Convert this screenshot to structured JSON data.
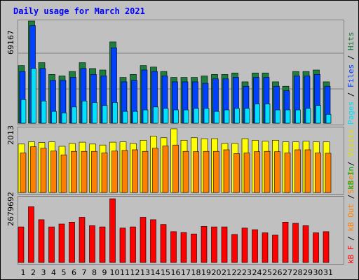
{
  "colors": {
    "frame_bg": "#c0c0c0",
    "title": "#0000ff",
    "pages": "#00e0ff",
    "files": "#0040ff",
    "hits": "#1e7e3e",
    "visits": "#ffff00",
    "sites": "#ff8000",
    "kb_in": "#00b000",
    "kb_out": "#ff0000",
    "weekend_label": "#1e7e3e"
  },
  "chart_data": [
    {
      "type": "bar",
      "title": "Daily usage for March 2021",
      "panel": "hits-files-pages",
      "y_max_label": "69167",
      "ylim": [
        0,
        69167
      ],
      "legend": {
        "pages": "Pages",
        "sep1": " / ",
        "files": "Files",
        "sep2": " / ",
        "hits": "Hits"
      },
      "categories": [
        "1",
        "2",
        "3",
        "4",
        "5",
        "6",
        "7",
        "8",
        "9",
        "10",
        "11",
        "12",
        "13",
        "14",
        "15",
        "16",
        "17",
        "18",
        "19",
        "20",
        "21",
        "22",
        "23",
        "24",
        "25",
        "26",
        "27",
        "28",
        "29",
        "30",
        "31"
      ],
      "weekend": [
        "6",
        "7",
        "13",
        "14",
        "20",
        "21",
        "27",
        "28"
      ],
      "series": [
        {
          "name": "Hits",
          "values": [
            39000,
            69167,
            41000,
            33000,
            32000,
            35000,
            41000,
            37000,
            36000,
            55000,
            31000,
            33000,
            39000,
            38000,
            35000,
            31000,
            31000,
            31000,
            32000,
            33000,
            33000,
            34000,
            28000,
            34000,
            34000,
            28000,
            25000,
            35000,
            35000,
            36000,
            28000
          ]
        },
        {
          "name": "Files",
          "values": [
            35000,
            66000,
            37000,
            29000,
            29000,
            31000,
            37000,
            33000,
            32000,
            51000,
            28000,
            29000,
            36000,
            35000,
            32000,
            28000,
            28000,
            28000,
            27000,
            30000,
            30000,
            31000,
            25000,
            31000,
            31000,
            25000,
            22000,
            32000,
            32000,
            33000,
            25000
          ]
        },
        {
          "name": "Pages",
          "values": [
            16000,
            37000,
            15000,
            8000,
            7000,
            11000,
            15000,
            14000,
            12000,
            14000,
            8000,
            8000,
            9000,
            11000,
            10000,
            9000,
            9000,
            10000,
            10000,
            8000,
            9000,
            10000,
            10000,
            13000,
            13000,
            9000,
            9000,
            9000,
            10000,
            12000,
            6000
          ]
        }
      ]
    },
    {
      "type": "bar",
      "panel": "visits-sites",
      "y_max_label": "2013",
      "ylim": [
        0,
        2013
      ],
      "legend": {
        "sites": "Sites",
        "sep": " / ",
        "visits": "Visits"
      },
      "categories": [
        "1",
        "2",
        "3",
        "4",
        "5",
        "6",
        "7",
        "8",
        "9",
        "10",
        "11",
        "12",
        "13",
        "14",
        "15",
        "16",
        "17",
        "18",
        "19",
        "20",
        "21",
        "22",
        "23",
        "24",
        "25",
        "26",
        "27",
        "28",
        "29",
        "30",
        "31"
      ],
      "series": [
        {
          "name": "Visits",
          "values": [
            1530,
            1600,
            1580,
            1600,
            1460,
            1550,
            1590,
            1530,
            1500,
            1590,
            1600,
            1550,
            1650,
            1780,
            1730,
            2013,
            1650,
            1730,
            1700,
            1700,
            1550,
            1550,
            1700,
            1650,
            1620,
            1650,
            1600,
            1600,
            1620,
            1600,
            1600
          ]
        },
        {
          "name": "Sites",
          "values": [
            1250,
            1450,
            1400,
            1310,
            1190,
            1300,
            1300,
            1300,
            1250,
            1310,
            1330,
            1350,
            1300,
            1400,
            1470,
            1500,
            1300,
            1290,
            1300,
            1300,
            1350,
            1230,
            1250,
            1290,
            1300,
            1290,
            1250,
            1350,
            1350,
            1250,
            1240
          ]
        }
      ]
    },
    {
      "type": "bar",
      "panel": "kb-in-out",
      "y_max_label": "2679692",
      "ylim": [
        0,
        2679692
      ],
      "legend": {
        "kb_f": "kB F",
        "sep1": " / ",
        "kb_out": "kB Out",
        "sep2": " / ",
        "kb_in": "kB In"
      },
      "categories": [
        "1",
        "2",
        "3",
        "4",
        "5",
        "6",
        "7",
        "8",
        "9",
        "10",
        "11",
        "12",
        "13",
        "14",
        "15",
        "16",
        "17",
        "18",
        "19",
        "20",
        "21",
        "22",
        "23",
        "24",
        "25",
        "26",
        "27",
        "28",
        "29",
        "30",
        "31"
      ],
      "series": [
        {
          "name": "kB F",
          "values": [
            1500000,
            2350000,
            1800000,
            1500000,
            1620000,
            1700000,
            1900000,
            1550000,
            1500000,
            2679692,
            1450000,
            1500000,
            1900000,
            1800000,
            1600000,
            1300000,
            1260000,
            1200000,
            1520000,
            1500000,
            1500000,
            1180000,
            1450000,
            1380000,
            1250000,
            1150000,
            1700000,
            1650000,
            1550000,
            1250000,
            1300000
          ]
        }
      ]
    }
  ]
}
